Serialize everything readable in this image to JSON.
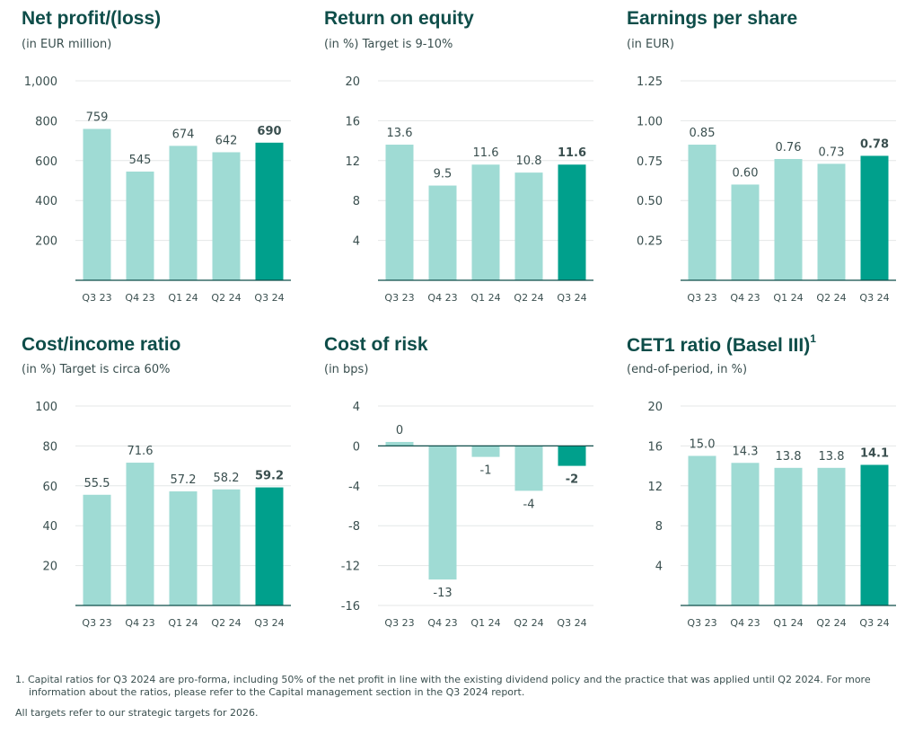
{
  "colors": {
    "light": "#9fdbd4",
    "dark": "#00a08c",
    "grid": "#e4e7e7",
    "axis": "#0e4d49",
    "text": "#3a4f4f"
  },
  "chart_data": [
    {
      "type": "bar",
      "title": "Net profit/(loss)",
      "subtitle": "(in EUR million)",
      "categories": [
        "Q3 23",
        "Q4 23",
        "Q1 24",
        "Q2 24",
        "Q3 24"
      ],
      "values": [
        759,
        545,
        674,
        642,
        690
      ],
      "value_labels": [
        "759",
        "545",
        "674",
        "642",
        "690"
      ],
      "yticks": [
        200,
        400,
        600,
        800,
        1000
      ],
      "ytick_labels": [
        "200",
        "400",
        "600",
        "800",
        "1,000"
      ],
      "ylim": [
        0,
        1000
      ],
      "highlight_last": true
    },
    {
      "type": "bar",
      "title": "Return on equity",
      "subtitle": "(in %) Target is 9-10%",
      "categories": [
        "Q3 23",
        "Q4 23",
        "Q1 24",
        "Q2 24",
        "Q3 24"
      ],
      "values": [
        13.6,
        9.5,
        11.6,
        10.8,
        11.6
      ],
      "value_labels": [
        "13.6",
        "9.5",
        "11.6",
        "10.8",
        "11.6"
      ],
      "yticks": [
        4,
        8,
        12,
        16,
        20
      ],
      "ytick_labels": [
        "4",
        "8",
        "12",
        "16",
        "20"
      ],
      "ylim": [
        0,
        20
      ],
      "highlight_last": true
    },
    {
      "type": "bar",
      "title": "Earnings per share",
      "subtitle": "(in EUR)",
      "categories": [
        "Q3 23",
        "Q4 23",
        "Q1 24",
        "Q2 24",
        "Q3 24"
      ],
      "values": [
        0.85,
        0.6,
        0.76,
        0.73,
        0.78
      ],
      "value_labels": [
        "0.85",
        "0.60",
        "0.76",
        "0.73",
        "0.78"
      ],
      "yticks": [
        0.25,
        0.5,
        0.75,
        1.0,
        1.25
      ],
      "ytick_labels": [
        "0.25",
        "0.50",
        "0.75",
        "1.00",
        "1.25"
      ],
      "ylim": [
        0,
        1.25
      ],
      "highlight_last": true
    },
    {
      "type": "bar",
      "title": "Cost/income ratio",
      "subtitle": "(in %) Target is circa 60%",
      "categories": [
        "Q3 23",
        "Q4 23",
        "Q1 24",
        "Q2 24",
        "Q3 24"
      ],
      "values": [
        55.5,
        71.6,
        57.2,
        58.2,
        59.2
      ],
      "value_labels": [
        "55.5",
        "71.6",
        "57.2",
        "58.2",
        "59.2"
      ],
      "yticks": [
        20,
        40,
        60,
        80,
        100
      ],
      "ytick_labels": [
        "20",
        "40",
        "60",
        "80",
        "100"
      ],
      "ylim": [
        0,
        100
      ],
      "highlight_last": true
    },
    {
      "type": "bar",
      "title": "Cost of risk",
      "subtitle": "(in bps)",
      "categories": [
        "Q3 23",
        "Q4 23",
        "Q1 24",
        "Q2 24",
        "Q3 24"
      ],
      "values": [
        0.4,
        -13.4,
        -1.1,
        -4.5,
        -2.0
      ],
      "value_labels": [
        "0",
        "-13",
        "-1",
        "-4",
        "-2"
      ],
      "yticks": [
        -16,
        -12,
        -8,
        -4,
        0,
        4
      ],
      "ytick_labels": [
        "-16",
        "-12",
        "-8",
        "-4",
        "0",
        "4"
      ],
      "ylim": [
        -16,
        4
      ],
      "highlight_last": true
    },
    {
      "type": "bar",
      "title": "CET1 ratio (Basel III)",
      "title_superscript": "1",
      "subtitle": "(end-of-period, in %)",
      "categories": [
        "Q3 23",
        "Q4 23",
        "Q1 24",
        "Q2 24",
        "Q3 24"
      ],
      "values": [
        15.0,
        14.3,
        13.8,
        13.8,
        14.1
      ],
      "value_labels": [
        "15.0",
        "14.3",
        "13.8",
        "13.8",
        "14.1"
      ],
      "yticks": [
        4,
        8,
        12,
        16,
        20
      ],
      "ytick_labels": [
        "4",
        "8",
        "12",
        "16",
        "20"
      ],
      "ylim": [
        0,
        20
      ],
      "highlight_last": true
    }
  ],
  "footnotes": {
    "note1_line1": "1. Capital ratios for Q3 2024 are pro-forma, including 50% of the net profit in line with the existing dividend policy and the practice that was applied until Q2 2024. For more",
    "note1_line2": "information about the ratios, please refer to the Capital management section in the Q3 2024 report.",
    "targets": "All targets refer to our strategic targets for 2026."
  }
}
